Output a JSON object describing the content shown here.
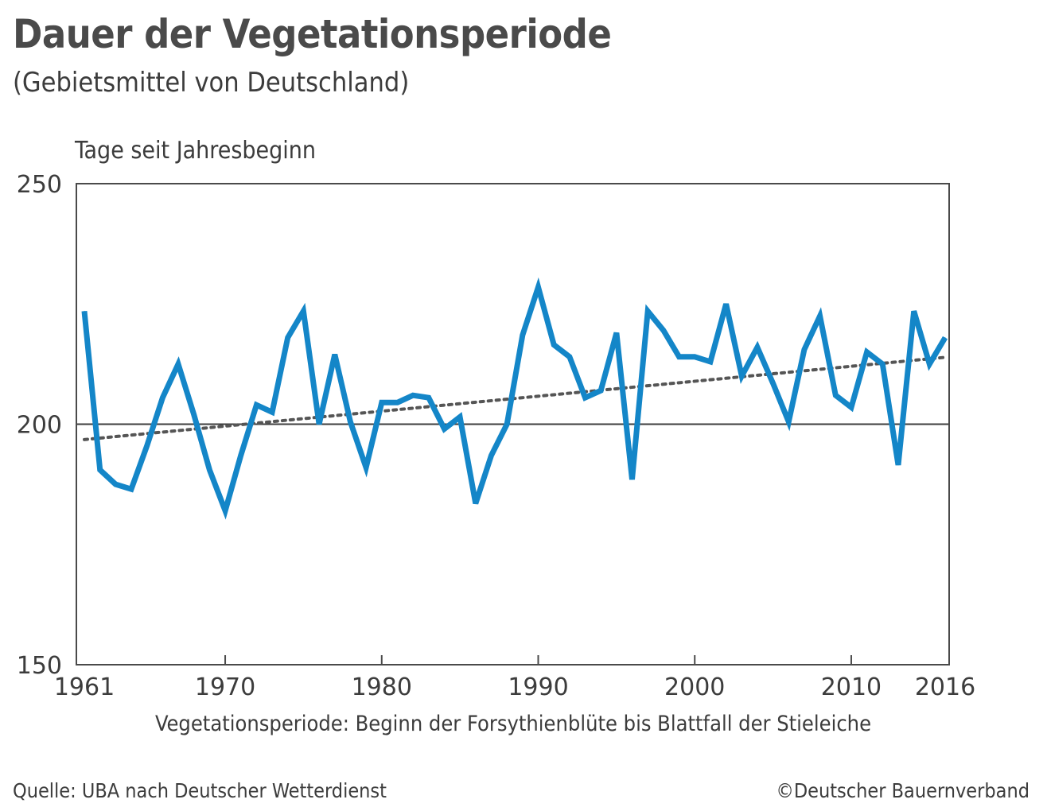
{
  "title": "Dauer der Vegetationsperiode",
  "subtitle": "(Gebietsmittel von Deutschland)",
  "y_axis_label": "Tage seit Jahresbeginn",
  "footnote": "Vegetationsperiode: Beginn der Forsythienblüte bis Blattfall der Stieleiche",
  "source": "Quelle: UBA nach Deutscher Wetterdienst",
  "copyright": "©Deutscher Bauernverband",
  "chart_data": {
    "type": "line",
    "title": "Dauer der Vegetationsperiode",
    "subtitle": "(Gebietsmittel von Deutschland)",
    "ylabel": "Tage seit Jahresbeginn",
    "xlabel": "",
    "xlim": [
      1961,
      2016
    ],
    "ylim": [
      150,
      250
    ],
    "x_ticks": [
      1961,
      1970,
      1980,
      1990,
      2000,
      2010,
      2016
    ],
    "y_ticks": [
      150,
      200,
      250
    ],
    "reference_line": 200,
    "grid": false,
    "series_color": "#1486c8",
    "trend_color": "#555555",
    "x": [
      1961,
      1962,
      1963,
      1964,
      1965,
      1966,
      1967,
      1968,
      1969,
      1970,
      1971,
      1972,
      1973,
      1974,
      1975,
      1976,
      1977,
      1978,
      1979,
      1980,
      1981,
      1982,
      1983,
      1984,
      1985,
      1986,
      1987,
      1988,
      1989,
      1990,
      1991,
      1992,
      1993,
      1994,
      1995,
      1996,
      1997,
      1998,
      1999,
      2000,
      2001,
      2002,
      2003,
      2004,
      2005,
      2006,
      2007,
      2008,
      2009,
      2010,
      2011,
      2012,
      2013,
      2014,
      2015,
      2016
    ],
    "series": [
      {
        "values": [
          223.5,
          190.5,
          187.5,
          186.5,
          195.5,
          205.5,
          212.5,
          202,
          190.5,
          182,
          193.5,
          204,
          202.5,
          218,
          223.5,
          200,
          214.5,
          200.5,
          191,
          204.5,
          204.5,
          206,
          205.5,
          199,
          201.5,
          183.5,
          193.5,
          200,
          218.5,
          228.5,
          216.5,
          214,
          205.5,
          207,
          219,
          188.5,
          223.5,
          219.5,
          214,
          214,
          213,
          225,
          210,
          216,
          208.5,
          200.5,
          215.5,
          222.5,
          206,
          203.5,
          215,
          212.5,
          191.5,
          223.5,
          212.5,
          218
        ]
      }
    ],
    "trend": {
      "start": [
        1961,
        196.8
      ],
      "end": [
        2016,
        213.9
      ]
    }
  }
}
